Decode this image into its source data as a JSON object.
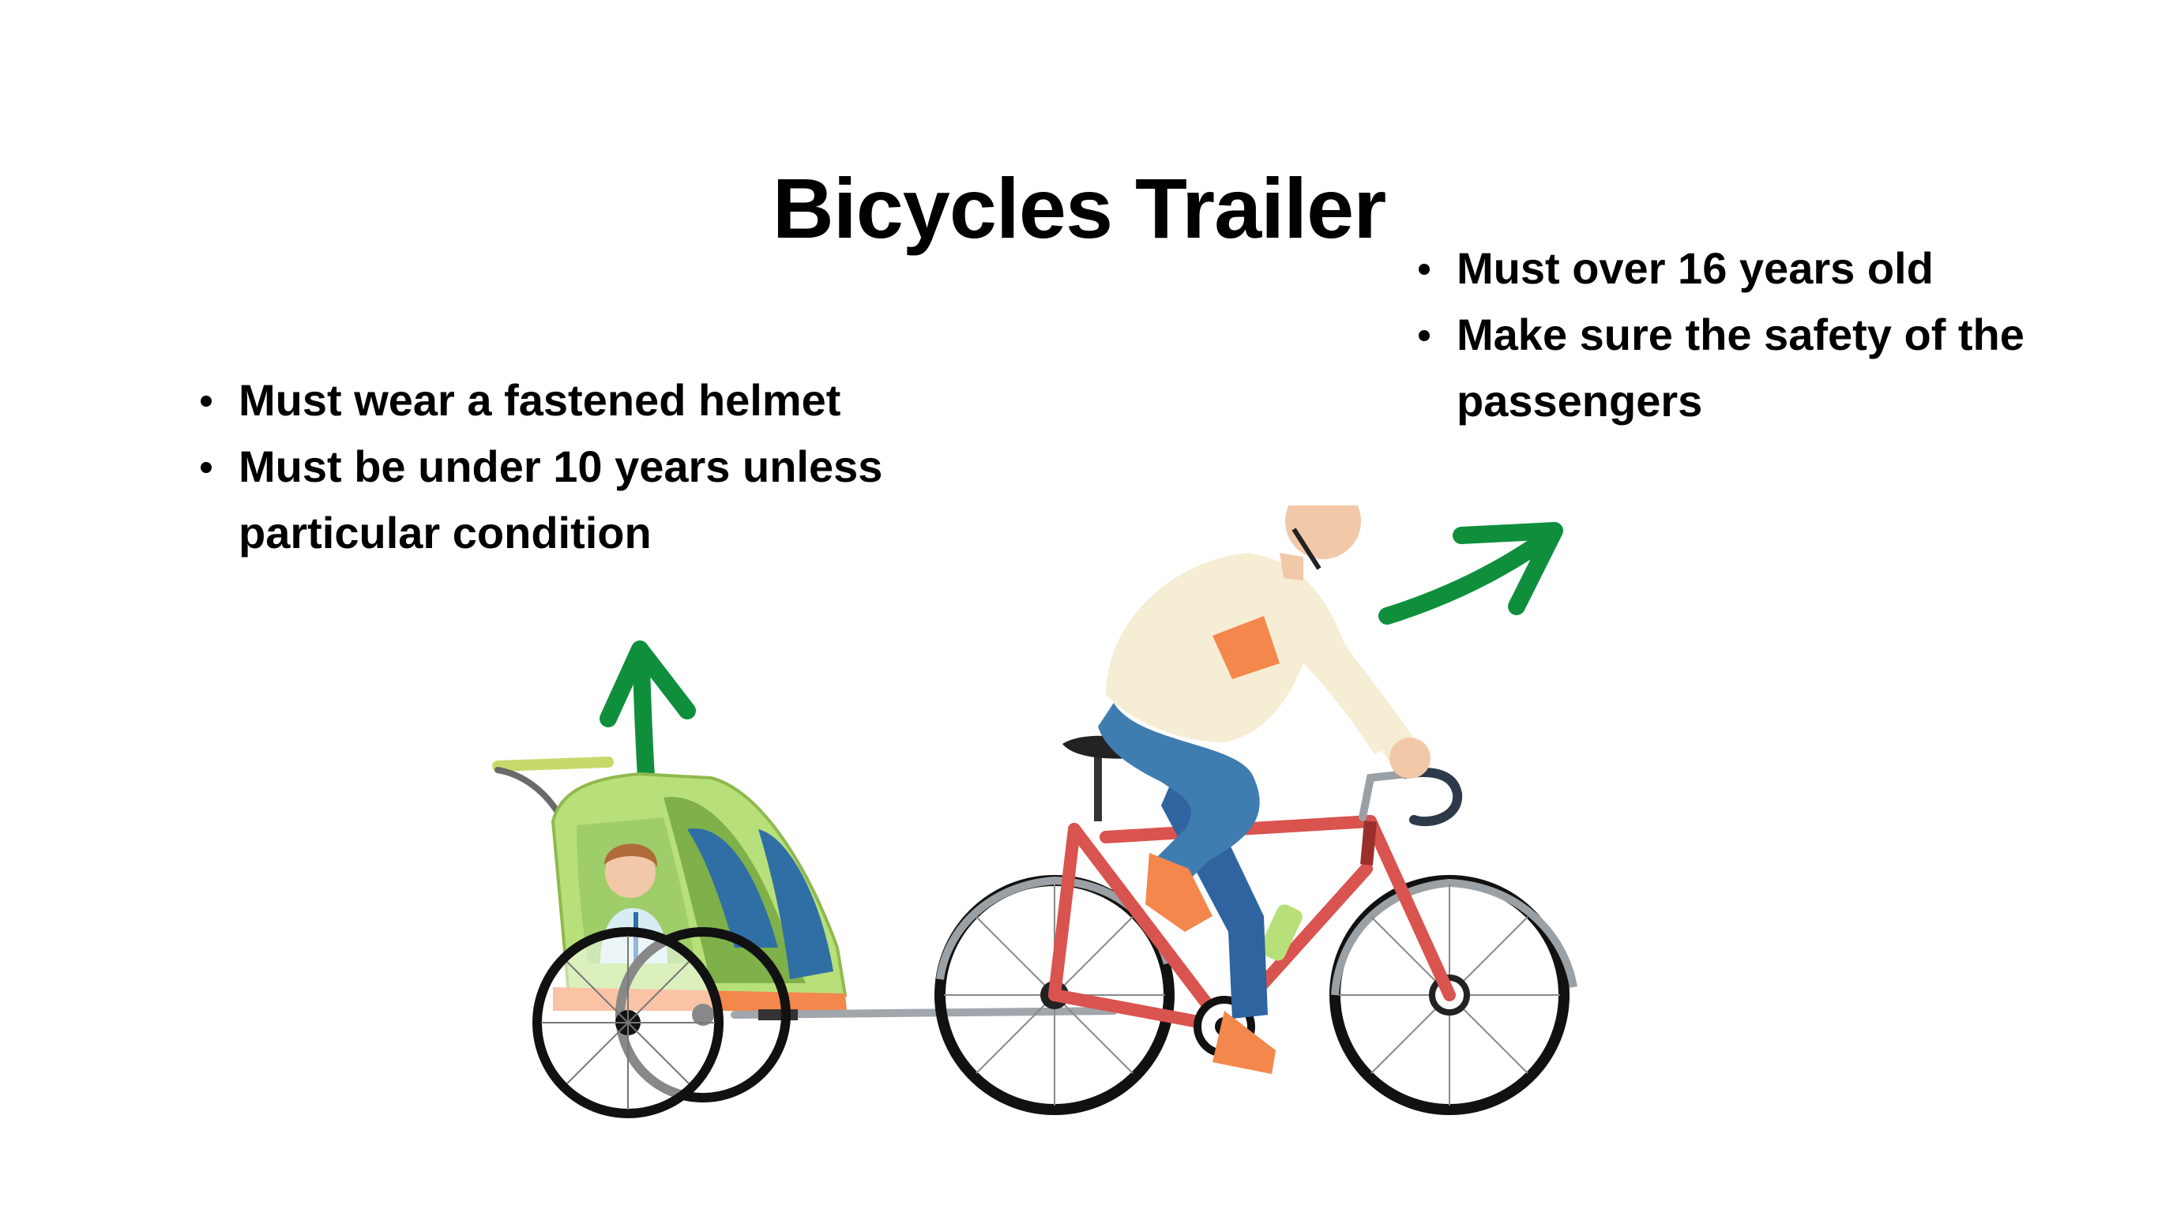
{
  "slide": {
    "title": "Bicycles Trailer",
    "child_rules": [
      "Must wear a fastened helmet",
      "Must be under 10 years unless particular condition"
    ],
    "rider_rules": [
      "Must over 16 years old",
      "Make sure the safety of the passengers"
    ]
  },
  "colors": {
    "arrow": "#0f8f3c",
    "frame": "#d9534f",
    "trailer": "#b8e07a",
    "helmet": "#e0443a",
    "jeans": "#3f7cb0",
    "shirt": "#f5edd4",
    "accent": "#f4874b"
  },
  "icons": [
    "arrow-up-icon",
    "arrow-up-right-icon",
    "cyclist-illustration",
    "child-trailer-illustration"
  ]
}
